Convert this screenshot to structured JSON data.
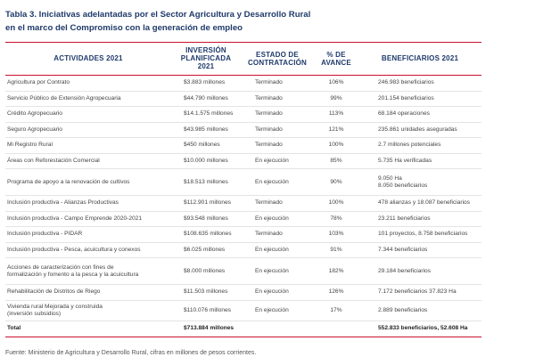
{
  "caption": {
    "line1": "Tabla 3. Iniciativas adelantadas por el Sector Agricultura y Desarrollo Rural",
    "line2": "en el marco del Compromiso con la generación de empleo"
  },
  "headers": {
    "actividades": "ACTIVIDADES 2021",
    "inversion": "INVERSIÓN PLANIFICADA 2021",
    "estado": "ESTADO DE CONTRATACIÓN",
    "avance": "% DE AVANCE",
    "beneficiarios": "BENEFICIARIOS 2021"
  },
  "rows": [
    {
      "actividad": "Agricultura por Contrato",
      "inversion": "$3.883 millones",
      "estado": "Terminado",
      "avance": "106%",
      "beneficiarios": "246.983 beneficiarios"
    },
    {
      "actividad": "Servicio Público de Extensión Agropecuaria",
      "inversion": "$44.790 millones",
      "estado": "Terminado",
      "avance": "99%",
      "beneficiarios": "201.154 beneficiarios"
    },
    {
      "actividad": "Crédito Agropecuario",
      "inversion": "$14.1.575 millones",
      "estado": "Terminado",
      "avance": "113%",
      "beneficiarios": "68.184 operaciones"
    },
    {
      "actividad": "Seguro Agropecuario",
      "inversion": "$43.985 millones",
      "estado": "Terminado",
      "avance": "121%",
      "beneficiarios": "235.861 unidades aseguradas"
    },
    {
      "actividad": "Mi Registro Rural",
      "inversion": "$450 millones",
      "estado": "Terminado",
      "avance": "100%",
      "beneficiarios": "2.7 millones potenciales"
    },
    {
      "actividad": "Áreas con Reforestación Comercial",
      "inversion": "$10.000 millones",
      "estado": "En ejecución",
      "avance": "85%",
      "beneficiarios": "5.735 Ha verificadas"
    },
    {
      "actividad": "Programa de apoyo a la renovación de cultivos",
      "inversion": "$18.513 millones",
      "estado": "En ejecución",
      "avance": "90%",
      "beneficiarios": "9.050 Ha",
      "beneficiarios2": "8.050 beneficiarios"
    },
    {
      "actividad": "Inclusión productiva - Alianzas Productivas",
      "inversion": "$112.901 millones",
      "estado": "Terminado",
      "avance": "100%",
      "beneficiarios": "478 alianzas y 18.087 beneficiarios"
    },
    {
      "actividad": "Inclusión productiva - Campo Emprende 2020-2021",
      "inversion": "$93.548 millones",
      "estado": "En ejecución",
      "avance": "78%",
      "beneficiarios": "23.211 beneficiarios"
    },
    {
      "actividad": "Inclusión productiva - PIDAR",
      "inversion": "$108.635 millones",
      "estado": "Terminado",
      "avance": "103%",
      "beneficiarios": "101 proyectos, 8.758 beneficiarios"
    },
    {
      "actividad": "Inclusión productiva - Pesca, acuicultura y conexos",
      "inversion": "$6.025 millones",
      "estado": "En ejecución",
      "avance": "91%",
      "beneficiarios": "7.344 beneficiarios"
    },
    {
      "actividad": "Acciones de caracterización con fines de",
      "actividad2": "formalización y fomento a la pesca y la acuicultura",
      "inversion": "$8.000 millones",
      "estado": "En ejecución",
      "avance": "182%",
      "beneficiarios": "29.184 beneficiarios"
    },
    {
      "actividad": "Rehabilitación de Distritos de Riego",
      "inversion": "$11.503 millones",
      "estado": "En ejecución",
      "avance": "126%",
      "beneficiarios": "7.172 beneficiarios 37.823 Ha"
    },
    {
      "actividad": "Vivienda rural Mejorada y construida",
      "actividad2": "(inversión subsidios)",
      "inversion": "$110.076 millones",
      "estado": "En ejecución",
      "avance": "17%",
      "beneficiarios": "2.889 beneficiarios"
    }
  ],
  "total": {
    "label": "Total",
    "inversion": "$713.884 millones",
    "beneficiarios": "552.833 beneficiarios, 52.608 Ha"
  },
  "source": "Fuente: Ministerio de Agricultura y Desarrollo Rural, cifras en millones de pesos corrientes."
}
